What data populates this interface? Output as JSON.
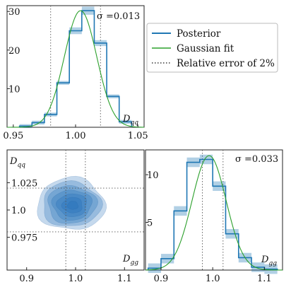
{
  "chart_data": [
    {
      "type": "histogram",
      "panel": "top-left",
      "xlabel": "D_qq",
      "annotation": "σ =0.013",
      "xlim": [
        0.945,
        1.055
      ],
      "ylim": [
        0,
        31.5
      ],
      "xticks": [
        {
          "v": 0.95,
          "label": "0.95"
        },
        {
          "v": 1.0,
          "label": "1.00"
        },
        {
          "v": 1.05,
          "label": "1.05"
        }
      ],
      "yticks": [
        {
          "v": 10,
          "label": "10"
        },
        {
          "v": 20,
          "label": "20"
        },
        {
          "v": 30,
          "label": "30"
        }
      ],
      "bin_edges": [
        0.955,
        0.965,
        0.975,
        0.985,
        0.995,
        1.005,
        1.015,
        1.025,
        1.035,
        1.045
      ],
      "counts": [
        0.3,
        1.2,
        3.3,
        11.5,
        25.0,
        30.2,
        21.8,
        8.0,
        1.4
      ],
      "ref_lines": [
        0.98,
        1.02
      ],
      "gaussian_fit": {
        "mean": 1.004,
        "sigma": 0.013,
        "peak": 30.2
      }
    },
    {
      "type": "contour",
      "panel": "bottom-left",
      "xlabel": "D_gg",
      "ylabel": "D_qq",
      "xlim": [
        0.86,
        1.14
      ],
      "ylim": [
        0.945,
        1.055
      ],
      "xticks": [
        {
          "v": 0.9,
          "label": "0.9"
        },
        {
          "v": 1.0,
          "label": "1.0"
        },
        {
          "v": 1.1,
          "label": "1.1"
        }
      ],
      "yticks": [
        {
          "v": 0.975,
          "label": "0.975"
        },
        {
          "v": 1.0,
          "label": "1.0"
        },
        {
          "v": 1.025,
          "label": "1.025"
        }
      ],
      "center": [
        0.995,
        1.004
      ],
      "ref_lines_x": [
        0.98,
        1.02
      ],
      "ref_lines_y": [
        0.98,
        1.02
      ]
    },
    {
      "type": "histogram",
      "panel": "bottom-right",
      "xlabel": "D_gg",
      "annotation": "σ =0.033",
      "xlim": [
        0.87,
        1.135
      ],
      "ylim": [
        0,
        12.6
      ],
      "xticks": [
        {
          "v": 0.9,
          "label": "0.9"
        },
        {
          "v": 1.0,
          "label": "1.0"
        },
        {
          "v": 1.1,
          "label": "1.1"
        }
      ],
      "yticks": [
        {
          "v": 5,
          "label": "5"
        },
        {
          "v": 10,
          "label": "10"
        }
      ],
      "bin_edges": [
        0.875,
        0.9,
        0.925,
        0.95,
        0.975,
        1.0,
        1.025,
        1.05,
        1.075,
        1.1,
        1.125
      ],
      "counts": [
        0.2,
        1.2,
        6.2,
        11.3,
        11.6,
        8.8,
        3.8,
        1.3,
        0.3,
        0.1
      ],
      "ref_lines": [
        0.98,
        1.02
      ],
      "gaussian_fit": {
        "mean": 0.993,
        "sigma": 0.033,
        "peak": 12.0
      }
    }
  ],
  "legend": {
    "placement": "top-right",
    "items": [
      {
        "label": "Posterior",
        "color": "#1f77b4",
        "style": "solid"
      },
      {
        "label": "Gaussian fit",
        "color": "#2ca02c",
        "style": "solid"
      },
      {
        "label": "Relative error of 2%",
        "color": "#111111",
        "style": "dotted"
      }
    ]
  },
  "colors": {
    "posterior": "#1f77b4",
    "fit": "#2ca02c",
    "ref": "#555555"
  }
}
